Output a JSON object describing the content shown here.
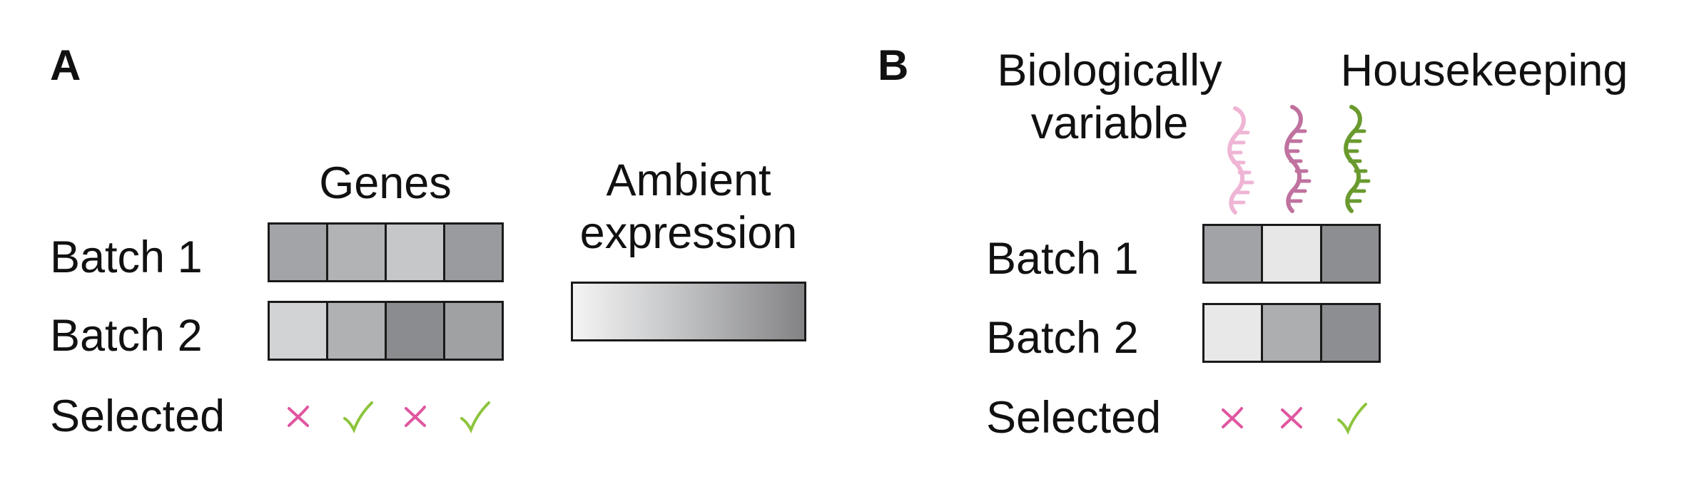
{
  "panel_a": {
    "letter": "A",
    "genes_header": "Genes",
    "ambient_header": "Ambient expression",
    "rows": [
      {
        "label": "Batch 1",
        "cells": [
          "#a3a4a7",
          "#b2b3b5",
          "#c6c7c8",
          "#9a9b9e"
        ]
      },
      {
        "label": "Batch 2",
        "cells": [
          "#d2d3d4",
          "#b0b1b3",
          "#8b8c8f",
          "#a0a1a3"
        ]
      }
    ],
    "selected_label": "Selected",
    "selected": [
      "cross",
      "check",
      "cross",
      "check"
    ],
    "gradient": {
      "from": "#f4f4f4",
      "to": "#838386"
    }
  },
  "panel_b": {
    "letter": "B",
    "bio_header": "Biologically variable",
    "house_header": "Housekeeping",
    "rows": [
      {
        "label": "Batch 1",
        "cells": [
          "#a2a3a6",
          "#e7e7e8",
          "#8d8e91"
        ]
      },
      {
        "label": "Batch 2",
        "cells": [
          "#e8e8e9",
          "#adaeb0",
          "#8d8e91"
        ]
      }
    ],
    "selected_label": "Selected",
    "selected": [
      "cross",
      "cross",
      "check"
    ],
    "rna_colors": [
      "#efb5d5",
      "#c0729f",
      "#6a9a2e"
    ]
  },
  "colors": {
    "cross": "#e0569f",
    "check": "#8cc43c"
  }
}
